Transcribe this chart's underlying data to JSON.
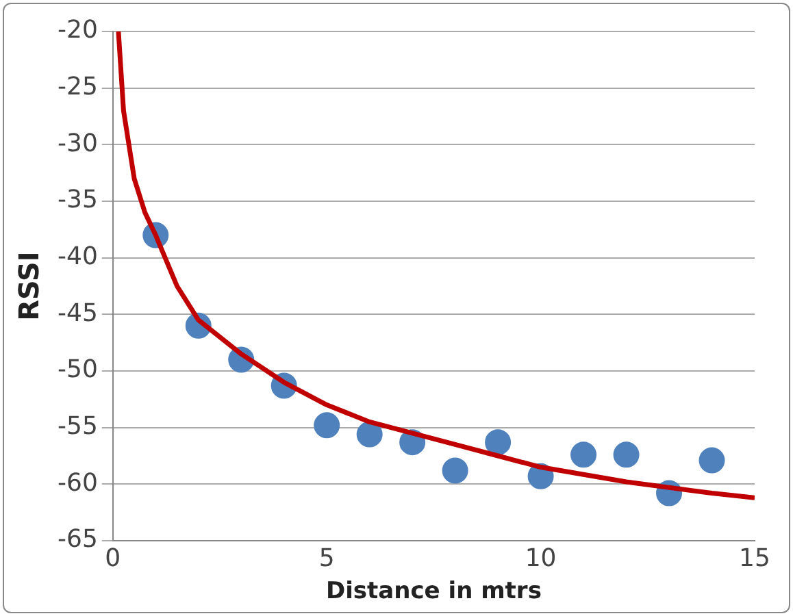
{
  "chart_data": {
    "type": "scatter",
    "xlabel": "Distance in mtrs",
    "ylabel": "RSSI",
    "xlim": [
      0,
      15
    ],
    "xticks": [
      0,
      5,
      10,
      15
    ],
    "ylim": [
      -65,
      -20
    ],
    "yticks": [
      -65,
      -60,
      -55,
      -50,
      -45,
      -40,
      -35,
      -30,
      -25,
      -20
    ],
    "grid": "y",
    "legend": false,
    "series": [
      {
        "marker": "circle",
        "color": "#4f81bd",
        "x": [
          1,
          2,
          3,
          4,
          5,
          6,
          7,
          8,
          9,
          10,
          11,
          12,
          13,
          14
        ],
        "values": [
          -38,
          -46,
          -49,
          -51.3,
          -54.8,
          -55.6,
          -56.3,
          -58.8,
          -56.3,
          -59.3,
          -57.4,
          -57.4,
          -60.8,
          -57.9
        ]
      },
      {
        "type": "line",
        "color": "#c00000",
        "marker": "none",
        "x": [
          0.13,
          0.25,
          0.5,
          0.75,
          1,
          1.5,
          2,
          3,
          4,
          5,
          6,
          7,
          8,
          9,
          10,
          12,
          14,
          15
        ],
        "values": [
          -20,
          -27,
          -33,
          -36,
          -38,
          -42.5,
          -45.5,
          -48.5,
          -51,
          -53,
          -54.5,
          -55.5,
          -56.5,
          -57.5,
          -58.5,
          -59.8,
          -60.8,
          -61.2
        ]
      }
    ]
  }
}
